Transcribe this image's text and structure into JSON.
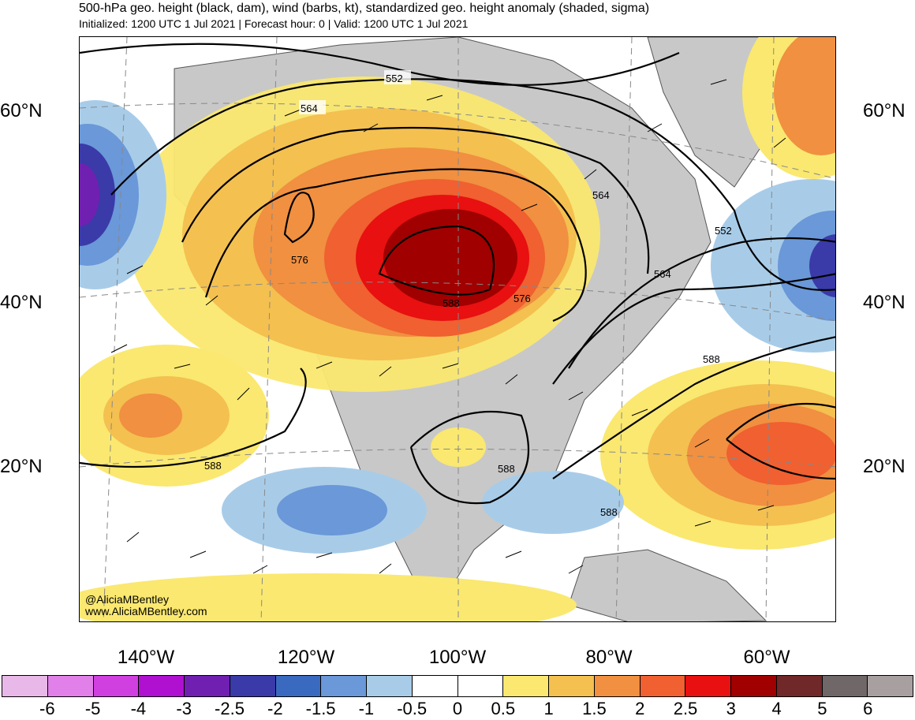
{
  "header": {
    "title": "500-hPa geo. height (black, dam), wind (barbs, kt), standardized geo. height anomaly (shaded, sigma)",
    "subtitle": "Initialized: 1200 UTC 1 Jul 2021 | Forecast hour: 0 | Valid: 1200 UTC 1 Jul 2021"
  },
  "map": {
    "lat_labels": [
      "60°N",
      "40°N",
      "20°N"
    ],
    "lon_labels": [
      "140°W",
      "120°W",
      "100°W",
      "80°W",
      "60°W"
    ],
    "contour_labels": [
      "552",
      "564",
      "576",
      "588",
      "564",
      "552",
      "564",
      "576",
      "588",
      "588",
      "588",
      "588",
      "588"
    ],
    "credit_handle": "@AliciaMBentley",
    "credit_site": "www.AliciaMBentley.com",
    "land_color": "#c8c8c8"
  },
  "colorbar": {
    "labels": [
      "-6",
      "-5",
      "-4",
      "-3",
      "-2.5",
      "-2",
      "-1.5",
      "-1",
      "-0.5",
      "0",
      "0.5",
      "1",
      "1.5",
      "2",
      "2.5",
      "3",
      "4",
      "5",
      "6"
    ],
    "colors": [
      "#e8b8e8",
      "#e080e8",
      "#d040e0",
      "#b010d0",
      "#7020b0",
      "#3a3aa8",
      "#3a6ac0",
      "#6a98d8",
      "#a8cce8",
      "#ffffff",
      "#ffffff",
      "#fae870",
      "#f4c050",
      "#f09040",
      "#f06030",
      "#e81010",
      "#a00000",
      "#702828",
      "#706868",
      "#a8a0a0"
    ]
  }
}
